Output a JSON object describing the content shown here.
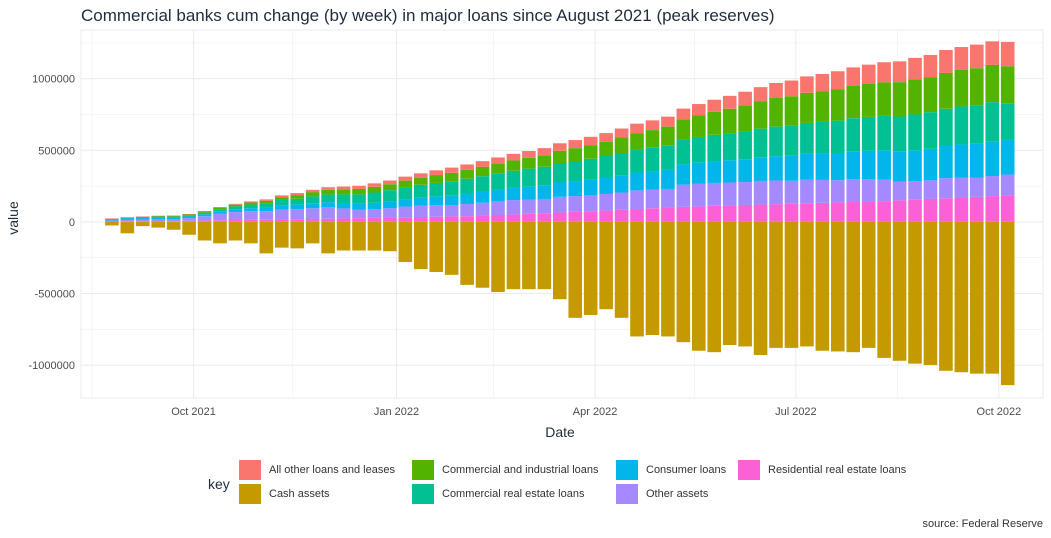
{
  "chart_data": {
    "type": "bar",
    "stacked": true,
    "title": "Commercial banks cum change (by week) in major loans since August 2021 (peak reserves)",
    "xlabel": "Date",
    "ylabel": "value",
    "x_ticks": [
      "Oct 2021",
      "Jan 2022",
      "Apr 2022",
      "Jul 2022",
      "Oct 2022"
    ],
    "y_ticks": [
      "-1000000",
      "-500000",
      "0",
      "500000",
      "1000000"
    ],
    "y_tick_values": [
      -1000000,
      -500000,
      0,
      500000,
      1000000
    ],
    "ylim": [
      -1230000,
      1340000
    ],
    "xlim": [
      "2021-08-11",
      "2022-10-21"
    ],
    "grid": true,
    "legend_title": "key",
    "legend_position": "bottom",
    "caption": "source: Federal Reserve",
    "dates": [
      "2021-08-25",
      "2021-09-01",
      "2021-09-08",
      "2021-09-15",
      "2021-09-22",
      "2021-09-29",
      "2021-10-06",
      "2021-10-13",
      "2021-10-20",
      "2021-10-27",
      "2021-11-03",
      "2021-11-10",
      "2021-11-17",
      "2021-11-24",
      "2021-12-01",
      "2021-12-08",
      "2021-12-15",
      "2021-12-22",
      "2021-12-29",
      "2022-01-05",
      "2022-01-12",
      "2022-01-19",
      "2022-01-26",
      "2022-02-02",
      "2022-02-09",
      "2022-02-16",
      "2022-02-23",
      "2022-03-02",
      "2022-03-09",
      "2022-03-16",
      "2022-03-23",
      "2022-03-30",
      "2022-04-06",
      "2022-04-13",
      "2022-04-20",
      "2022-04-27",
      "2022-05-04",
      "2022-05-11",
      "2022-05-18",
      "2022-05-25",
      "2022-06-01",
      "2022-06-08",
      "2022-06-15",
      "2022-06-22",
      "2022-06-29",
      "2022-07-06",
      "2022-07-13",
      "2022-07-20",
      "2022-07-27",
      "2022-08-03",
      "2022-08-10",
      "2022-08-17",
      "2022-08-24",
      "2022-08-31",
      "2022-09-07",
      "2022-09-14",
      "2022-09-21",
      "2022-09-28",
      "2022-10-05"
    ],
    "series": [
      {
        "name": "Cash assets",
        "color": "#c49a00",
        "values": [
          -25000,
          -80000,
          -30000,
          -40000,
          -55000,
          -90000,
          -130000,
          -150000,
          -130000,
          -150000,
          -220000,
          -180000,
          -185000,
          -150000,
          -220000,
          -200000,
          -200000,
          -200000,
          -205000,
          -280000,
          -330000,
          -350000,
          -370000,
          -440000,
          -460000,
          -490000,
          -470000,
          -470000,
          -470000,
          -540000,
          -670000,
          -650000,
          -610000,
          -670000,
          -800000,
          -790000,
          -800000,
          -840000,
          -900000,
          -910000,
          -860000,
          -870000,
          -930000,
          -880000,
          -880000,
          -870000,
          -900000,
          -905000,
          -910000,
          -880000,
          -950000,
          -970000,
          -990000,
          -1000000,
          -1040000,
          -1050000,
          -1060000,
          -1060000,
          -1140000
        ]
      },
      {
        "name": "Residential real estate loans",
        "color": "#fb61d7",
        "values": [
          2000,
          4000,
          5000,
          6000,
          5000,
          8000,
          9000,
          11000,
          13000,
          14000,
          15000,
          17000,
          18000,
          20000,
          22000,
          24000,
          26000,
          28000,
          30000,
          32000,
          34000,
          36000,
          38000,
          40000,
          44000,
          48000,
          52000,
          56000,
          60000,
          65000,
          70000,
          75000,
          80000,
          85000,
          90000,
          95000,
          100000,
          105000,
          108000,
          112000,
          115000,
          118000,
          121000,
          124000,
          127000,
          130000,
          133000,
          136000,
          139000,
          142000,
          145000,
          150000,
          155000,
          160000,
          165000,
          170000,
          175000,
          180000,
          185000
        ]
      },
      {
        "name": "Other assets",
        "color": "#a58aff",
        "values": [
          8000,
          10000,
          12000,
          14000,
          15000,
          18000,
          30000,
          45000,
          55000,
          60000,
          60000,
          70000,
          70000,
          75000,
          80000,
          70000,
          60000,
          60000,
          65000,
          75000,
          80000,
          80000,
          80000,
          85000,
          90000,
          95000,
          100000,
          100000,
          100000,
          110000,
          110000,
          110000,
          115000,
          120000,
          130000,
          130000,
          130000,
          155000,
          160000,
          160000,
          160000,
          160000,
          165000,
          165000,
          160000,
          165000,
          160000,
          155000,
          160000,
          155000,
          150000,
          130000,
          130000,
          130000,
          140000,
          140000,
          135000,
          140000,
          145000
        ]
      },
      {
        "name": "Consumer loans",
        "color": "#00b6eb",
        "values": [
          8000,
          10000,
          10000,
          11000,
          10000,
          12000,
          15000,
          18000,
          20000,
          22000,
          26000,
          30000,
          32000,
          35000,
          36000,
          38000,
          40000,
          45000,
          48000,
          52000,
          55000,
          60000,
          65000,
          70000,
          75000,
          80000,
          85000,
          90000,
          95000,
          100000,
          105000,
          110000,
          115000,
          120000,
          125000,
          130000,
          135000,
          140000,
          145000,
          150000,
          155000,
          160000,
          165000,
          170000,
          175000,
          180000,
          185000,
          190000,
          195000,
          200000,
          205000,
          210000,
          215000,
          220000,
          225000,
          230000,
          235000,
          240000,
          245000
        ]
      },
      {
        "name": "Commercial real estate loans",
        "color": "#00c094",
        "values": [
          4000,
          5000,
          6000,
          6000,
          7000,
          8000,
          10000,
          15000,
          20000,
          25000,
          30000,
          36000,
          42000,
          48000,
          54000,
          60000,
          66000,
          72000,
          78000,
          84000,
          90000,
          96000,
          100000,
          106000,
          110000,
          116000,
          120000,
          126000,
          130000,
          136000,
          140000,
          146000,
          150000,
          156000,
          160000,
          166000,
          170000,
          176000,
          180000,
          186000,
          190000,
          196000,
          200000,
          206000,
          210000,
          216000,
          220000,
          226000,
          230000,
          236000,
          240000,
          246000,
          250000,
          256000,
          260000,
          266000,
          270000,
          276000,
          250000
        ]
      },
      {
        "name": "Commercial and industrial loans",
        "color": "#53b400",
        "values": [
          1000,
          2000,
          3000,
          4000,
          5000,
          6000,
          8000,
          10000,
          12000,
          14000,
          16000,
          20000,
          25000,
          30000,
          32000,
          35000,
          38000,
          40000,
          42000,
          45000,
          50000,
          55000,
          60000,
          62000,
          65000,
          68000,
          72000,
          75000,
          80000,
          85000,
          90000,
          95000,
          100000,
          108000,
          115000,
          120000,
          130000,
          140000,
          150000,
          160000,
          170000,
          180000,
          190000,
          200000,
          205000,
          210000,
          215000,
          220000,
          225000,
          230000,
          235000,
          240000,
          245000,
          245000,
          250000,
          255000,
          258000,
          260000,
          262000
        ]
      },
      {
        "name": "All other loans and leases",
        "color": "#f8766d",
        "values": [
          1000,
          1000,
          2000,
          2000,
          2000,
          3000,
          4000,
          5000,
          6000,
          8000,
          10000,
          12000,
          14000,
          16000,
          18000,
          20000,
          22000,
          24000,
          26000,
          28000,
          30000,
          33000,
          36000,
          38000,
          40000,
          43000,
          46000,
          48000,
          50000,
          53000,
          56000,
          58000,
          60000,
          63000,
          66000,
          68000,
          70000,
          75000,
          80000,
          85000,
          90000,
          95000,
          100000,
          105000,
          110000,
          115000,
          120000,
          125000,
          130000,
          135000,
          140000,
          145000,
          150000,
          155000,
          160000,
          160000,
          165000,
          165000,
          170000
        ]
      }
    ]
  },
  "legend": {
    "items": [
      {
        "label": "All other loans and leases",
        "color": "#f8766d"
      },
      {
        "label": "Cash assets",
        "color": "#c49a00"
      },
      {
        "label": "Commercial and industrial loans",
        "color": "#53b400"
      },
      {
        "label": "Commercial real estate loans",
        "color": "#00c094"
      },
      {
        "label": "Consumer loans",
        "color": "#00b6eb"
      },
      {
        "label": "Other assets",
        "color": "#a58aff"
      },
      {
        "label": "Residential real estate loans",
        "color": "#fb61d7"
      }
    ]
  }
}
